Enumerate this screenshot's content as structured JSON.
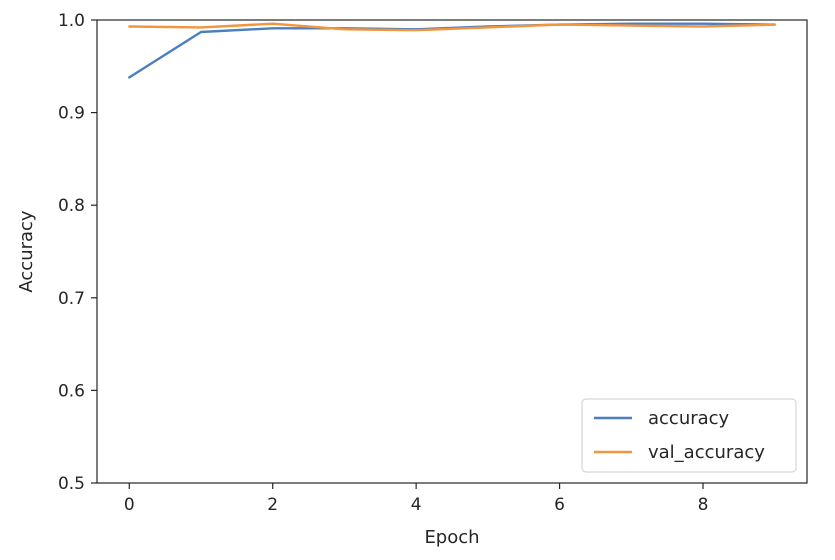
{
  "chart_data": {
    "type": "line",
    "title": "",
    "xlabel": "Epoch",
    "ylabel": "Accuracy",
    "x": [
      0,
      1,
      2,
      3,
      4,
      5,
      6,
      7,
      8,
      9
    ],
    "xlim": [
      -0.45,
      9.45
    ],
    "ylim": [
      0.5,
      1.0
    ],
    "xticks": [
      0,
      2,
      4,
      6,
      8
    ],
    "yticks": [
      0.5,
      0.6,
      0.7,
      0.8,
      0.9,
      1.0
    ],
    "xtick_labels": [
      "0",
      "2",
      "4",
      "6",
      "8"
    ],
    "ytick_labels": [
      "0.5",
      "0.6",
      "0.7",
      "0.8",
      "0.9",
      "1.0"
    ],
    "grid": false,
    "legend_position": "lower right",
    "series": [
      {
        "name": "accuracy",
        "color": "#4c7fc0",
        "values": [
          0.938,
          0.987,
          0.991,
          0.991,
          0.99,
          0.993,
          0.995,
          0.996,
          0.996,
          0.995
        ]
      },
      {
        "name": "val_accuracy",
        "color": "#f2953f",
        "values": [
          0.993,
          0.992,
          0.996,
          0.99,
          0.989,
          0.992,
          0.995,
          0.994,
          0.993,
          0.995
        ]
      }
    ]
  }
}
